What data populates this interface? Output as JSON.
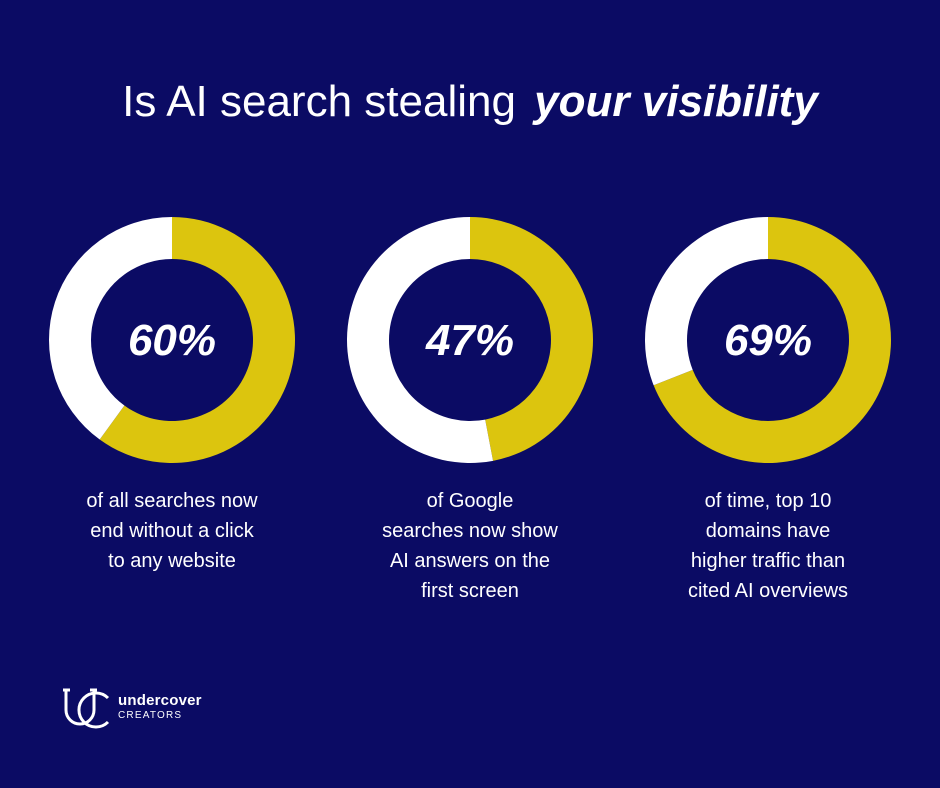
{
  "title": {
    "main": "Is AI search stealing",
    "emphasis": "your visibility"
  },
  "colors": {
    "background": "#0b0b64",
    "accent": "#dcc50e",
    "ring_base": "#ffffff"
  },
  "chart_data": [
    {
      "type": "pie",
      "variant": "donut",
      "values": [
        60,
        40
      ],
      "label": "60%",
      "caption": [
        "of all searches now",
        "end without a click",
        "to any website"
      ]
    },
    {
      "type": "pie",
      "variant": "donut",
      "values": [
        47,
        53
      ],
      "label": "47%",
      "caption": [
        "of Google",
        "searches now show",
        "AI answers on the",
        "first screen"
      ]
    },
    {
      "type": "pie",
      "variant": "donut",
      "values": [
        69,
        31
      ],
      "label": "69%",
      "caption": [
        "of time, top 10",
        "domains have",
        "higher traffic than",
        "cited AI overviews"
      ]
    }
  ],
  "brand": {
    "name": "undercover",
    "sub": "CREATORS",
    "icon": "uc-monogram-icon"
  }
}
